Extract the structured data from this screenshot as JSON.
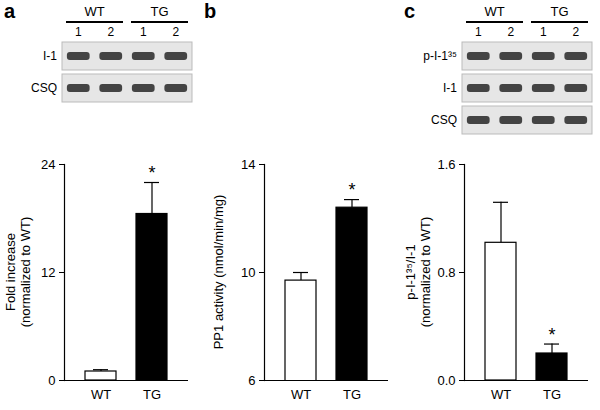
{
  "chart_data": [
    {
      "type": "bar",
      "title": "a",
      "blot": {
        "groups": [
          "WT",
          "TG"
        ],
        "lanes": [
          "1",
          "2"
        ],
        "rows": [
          "I-1",
          "CSQ"
        ]
      },
      "categories": [
        "WT",
        "TG"
      ],
      "values": [
        1.0,
        18.5
      ],
      "errors": [
        0.2,
        3.5
      ],
      "colors": [
        "#ffffff",
        "#000000"
      ],
      "ylabel": "Fold increase\n(normalized to WT)",
      "ylim": [
        0,
        24
      ],
      "yticks": [
        0,
        12,
        24
      ],
      "annotations": [
        {
          "category": "TG",
          "text": "*"
        }
      ]
    },
    {
      "type": "bar",
      "title": "b",
      "categories": [
        "WT",
        "TG"
      ],
      "values": [
        9.7,
        12.4
      ],
      "errors": [
        0.3,
        0.3
      ],
      "colors": [
        "#ffffff",
        "#000000"
      ],
      "ylabel": "PP1 activity (nmol/min/mg)",
      "ylim": [
        6,
        14
      ],
      "yticks": [
        6,
        10,
        14
      ],
      "annotations": [
        {
          "category": "TG",
          "text": "*"
        }
      ]
    },
    {
      "type": "bar",
      "title": "c",
      "blot": {
        "groups": [
          "WT",
          "TG"
        ],
        "lanes": [
          "1",
          "2"
        ],
        "rows": [
          "p-I-1³⁵",
          "I-1",
          "CSQ"
        ]
      },
      "categories": [
        "WT",
        "TG"
      ],
      "values": [
        1.02,
        0.2
      ],
      "errors": [
        0.3,
        0.07
      ],
      "colors": [
        "#ffffff",
        "#000000"
      ],
      "ylabel": "p-I-1³⁵/I-1\n(normalized to WT)",
      "ylim": [
        0,
        1.6
      ],
      "yticks": [
        0,
        0.8,
        1.6
      ],
      "annotations": [
        {
          "category": "TG",
          "text": "*"
        }
      ]
    }
  ]
}
